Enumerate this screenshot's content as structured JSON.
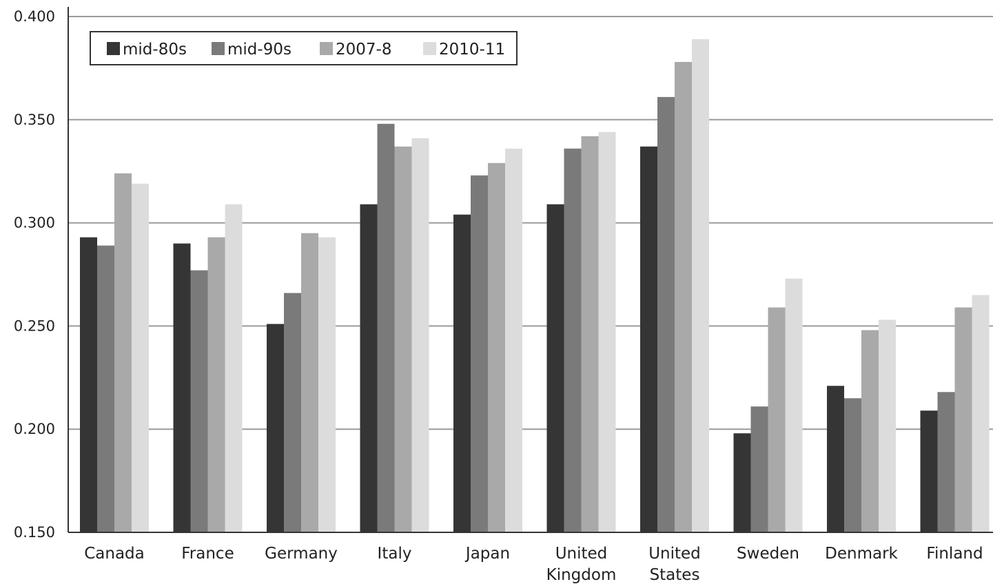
{
  "chart_data": {
    "type": "bar",
    "categories": [
      "Canada",
      "France",
      "Germany",
      "Italy",
      "Japan",
      "United Kingdom",
      "United States",
      "Sweden",
      "Denmark",
      "Finland"
    ],
    "category_lines": [
      [
        "Canada"
      ],
      [
        "France"
      ],
      [
        "Germany"
      ],
      [
        "Italy"
      ],
      [
        "Japan"
      ],
      [
        "United",
        "Kingdom"
      ],
      [
        "United",
        "States"
      ],
      [
        "Sweden"
      ],
      [
        "Denmark"
      ],
      [
        "Finland"
      ]
    ],
    "series": [
      {
        "name": "mid-80s",
        "color": "#353535",
        "values": [
          0.293,
          0.29,
          0.251,
          0.309,
          0.304,
          0.309,
          0.337,
          0.198,
          0.221,
          0.209
        ]
      },
      {
        "name": "mid-90s",
        "color": "#7a7a7a",
        "values": [
          0.289,
          0.277,
          0.266,
          0.348,
          0.323,
          0.336,
          0.361,
          0.211,
          0.215,
          0.218
        ]
      },
      {
        "name": "2007-8",
        "color": "#a9a9a9",
        "values": [
          0.324,
          0.293,
          0.295,
          0.337,
          0.329,
          0.342,
          0.378,
          0.259,
          0.248,
          0.259
        ]
      },
      {
        "name": "2010-11",
        "color": "#dcdcdc",
        "values": [
          0.319,
          0.309,
          0.293,
          0.341,
          0.336,
          0.344,
          0.389,
          0.273,
          0.253,
          0.265
        ]
      }
    ],
    "yticks": [
      "0.150",
      "0.200",
      "0.250",
      "0.300",
      "0.350",
      "0.400"
    ],
    "ylim": [
      0.15,
      0.4
    ],
    "grid": true,
    "legend_position": "top-left"
  }
}
